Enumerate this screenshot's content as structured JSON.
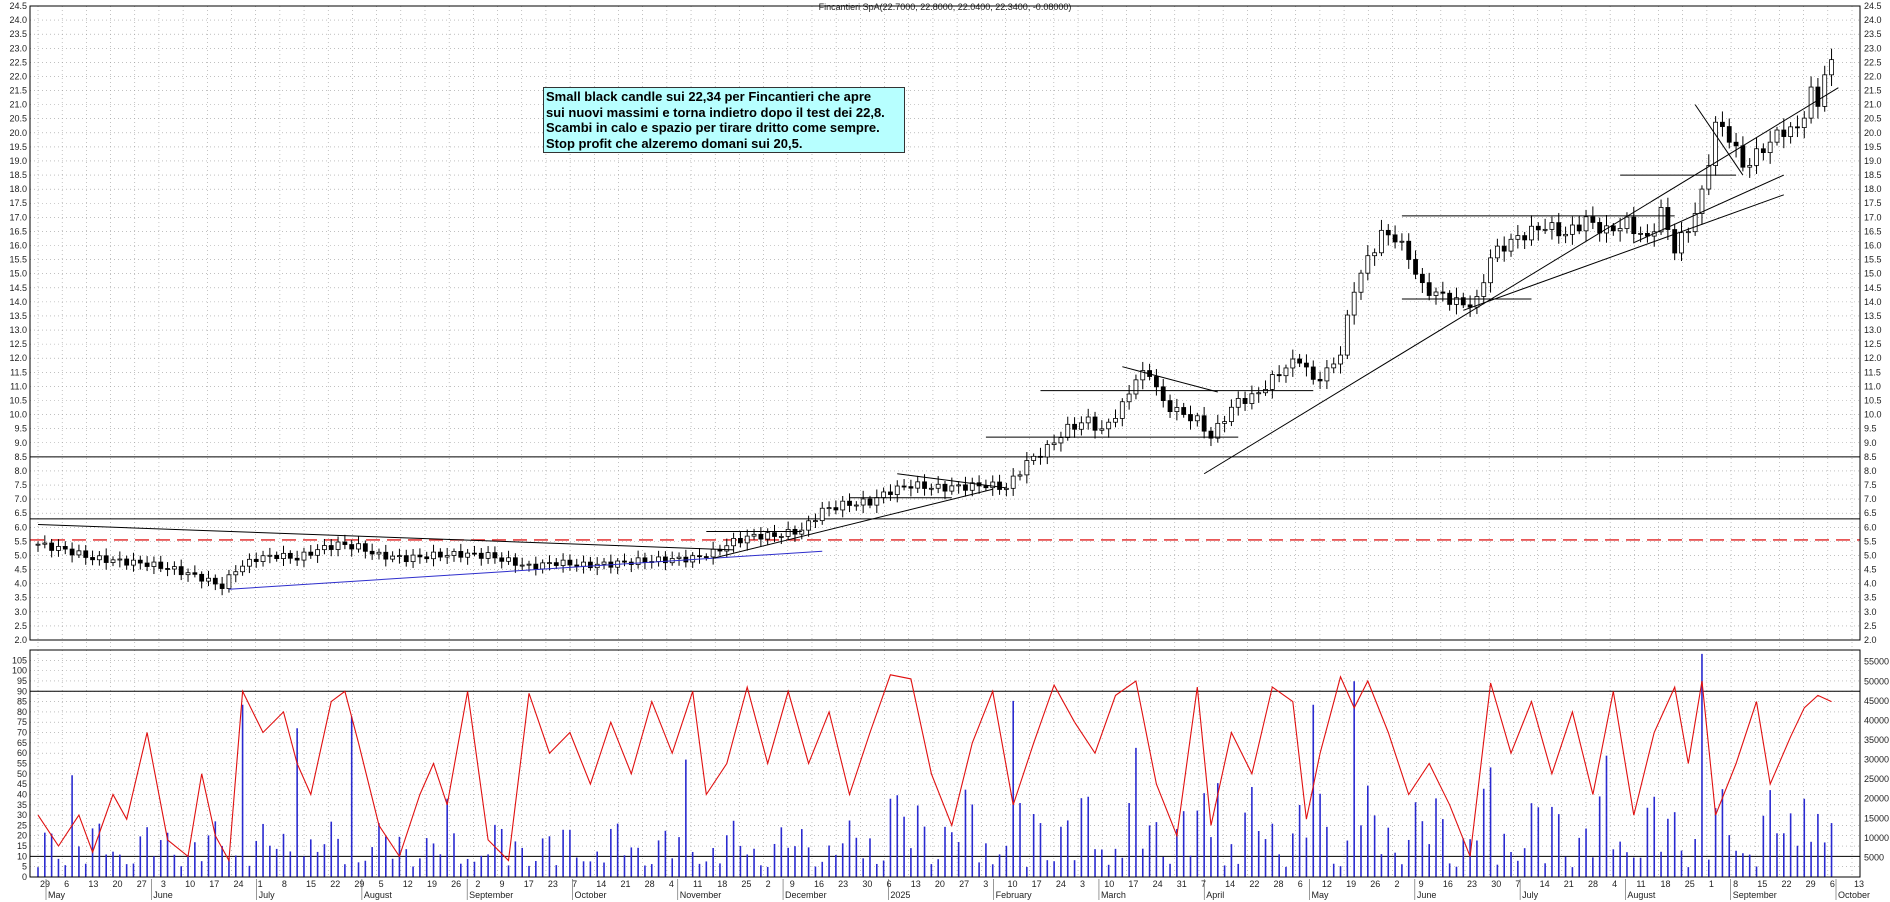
{
  "chart_data": {
    "type": "candlestick",
    "title": "Fincantieri SpA(22.7000, 22.8000, 22.0400, 22.3400, -0.08000)",
    "annotation": [
      "Small black candle sui 22,34 per Fincantieri che apre",
      "sui nuovi massimi e torna indietro dopo il test dei 22,8.",
      "Scambi in calo e spazio per tirare dritto come sempre.",
      "Stop profit  che alzeremo domani sui 20,5."
    ],
    "price_panel": {
      "ylim": [
        2.0,
        24.5
      ],
      "yticks": [
        "2.0",
        "2.5",
        "3.0",
        "3.5",
        "4.0",
        "4.5",
        "5.0",
        "5.5",
        "6.0",
        "6.5",
        "7.0",
        "7.5",
        "8.0",
        "8.5",
        "9.0",
        "9.5",
        "10.0",
        "10.5",
        "11.0",
        "11.5",
        "12.0",
        "12.5",
        "13.0",
        "13.5",
        "14.0",
        "14.5",
        "15.0",
        "15.5",
        "16.0",
        "16.5",
        "17.0",
        "17.5",
        "18.0",
        "18.5",
        "19.0",
        "19.5",
        "20.0",
        "20.5",
        "21.0",
        "21.5",
        "22.0",
        "22.5",
        "23.0",
        "23.5",
        "24.0",
        "24.5"
      ],
      "horizontal_levels": [
        8.5,
        6.3
      ],
      "dashed_level": 5.55,
      "close_path": [
        [
          0,
          5.4
        ],
        [
          4,
          5.2
        ],
        [
          8,
          4.9
        ],
        [
          12,
          4.8
        ],
        [
          16,
          4.7
        ],
        [
          20,
          4.5
        ],
        [
          24,
          4.2
        ],
        [
          27,
          3.9
        ],
        [
          29,
          4.5
        ],
        [
          32,
          4.9
        ],
        [
          35,
          5.0
        ],
        [
          38,
          4.9
        ],
        [
          41,
          5.2
        ],
        [
          44,
          5.4
        ],
        [
          47,
          5.3
        ],
        [
          50,
          5.0
        ],
        [
          54,
          4.9
        ],
        [
          58,
          5.0
        ],
        [
          62,
          5.05
        ],
        [
          66,
          5.0
        ],
        [
          69,
          4.8
        ],
        [
          72,
          4.6
        ],
        [
          76,
          4.75
        ],
        [
          80,
          4.65
        ],
        [
          84,
          4.7
        ],
        [
          88,
          4.8
        ],
        [
          92,
          4.85
        ],
        [
          96,
          4.9
        ],
        [
          99,
          5.1
        ],
        [
          102,
          5.5
        ],
        [
          105,
          5.7
        ],
        [
          108,
          5.7
        ],
        [
          112,
          5.9
        ],
        [
          115,
          6.6
        ],
        [
          118,
          6.8
        ],
        [
          122,
          6.9
        ],
        [
          125,
          7.3
        ],
        [
          128,
          7.5
        ],
        [
          132,
          7.4
        ],
        [
          136,
          7.45
        ],
        [
          139,
          7.5
        ],
        [
          142,
          7.4
        ],
        [
          145,
          8.3
        ],
        [
          148,
          8.8
        ],
        [
          151,
          9.5
        ],
        [
          154,
          9.8
        ],
        [
          156,
          9.4
        ],
        [
          159,
          10.3
        ],
        [
          161,
          11.3
        ],
        [
          163,
          11.5
        ],
        [
          165,
          10.4
        ],
        [
          168,
          10.0
        ],
        [
          170,
          9.8
        ],
        [
          172,
          9.2
        ],
        [
          174,
          9.9
        ],
        [
          176,
          10.5
        ],
        [
          178,
          10.6
        ],
        [
          180,
          11.0
        ],
        [
          182,
          11.5
        ],
        [
          185,
          12.0
        ],
        [
          187,
          11.2
        ],
        [
          189,
          11.5
        ],
        [
          191,
          12.2
        ],
        [
          193,
          14.5
        ],
        [
          195,
          15.5
        ],
        [
          197,
          16.4
        ],
        [
          199,
          16.3
        ],
        [
          201,
          15.6
        ],
        [
          203,
          14.5
        ],
        [
          206,
          14.2
        ],
        [
          209,
          13.9
        ],
        [
          211,
          14.0
        ],
        [
          213,
          15.6
        ],
        [
          215,
          16.0
        ],
        [
          218,
          16.4
        ],
        [
          221,
          16.7
        ],
        [
          224,
          16.4
        ],
        [
          227,
          16.9
        ],
        [
          230,
          16.5
        ],
        [
          233,
          16.8
        ],
        [
          236,
          16.2
        ],
        [
          238,
          17.2
        ],
        [
          240,
          15.9
        ],
        [
          242,
          16.6
        ],
        [
          244,
          17.8
        ],
        [
          246,
          20.3
        ],
        [
          248,
          19.9
        ],
        [
          250,
          18.8
        ],
        [
          252,
          19.2
        ],
        [
          254,
          19.7
        ],
        [
          256,
          20.1
        ],
        [
          258,
          20.1
        ],
        [
          260,
          21.4
        ],
        [
          261,
          21.0
        ],
        [
          262,
          22.2
        ],
        [
          263,
          22.34
        ]
      ],
      "trendlines": [
        {
          "from": [
            0,
            6.1
          ],
          "to": [
            102,
            5.2
          ],
          "color": "#000000"
        },
        {
          "from": [
            28,
            3.8
          ],
          "to": [
            115,
            5.15
          ],
          "color": "#2e2ecc"
        },
        {
          "from": [
            99,
            4.9
          ],
          "to": [
            140,
            7.35
          ],
          "color": "#000000"
        },
        {
          "from": [
            171,
            7.9
          ],
          "to": [
            264,
            21.6
          ],
          "color": "#000000"
        },
        {
          "from": [
            209,
            13.7
          ],
          "to": [
            256,
            17.8
          ],
          "color": "#000000"
        },
        {
          "from": [
            234,
            16.1
          ],
          "to": [
            256,
            18.5
          ],
          "color": "#000000"
        },
        {
          "from": [
            159,
            11.7
          ],
          "to": [
            173,
            10.8
          ],
          "color": "#000000"
        },
        {
          "from": [
            126,
            7.9
          ],
          "to": [
            142,
            7.4
          ],
          "color": "#000000"
        },
        {
          "from": [
            243,
            21.0
          ],
          "to": [
            250,
            18.5
          ],
          "color": "#000000"
        }
      ],
      "support_resistance": [
        {
          "from": [
            98,
            5.85
          ],
          "to": [
            112,
            5.85
          ]
        },
        {
          "from": [
            119,
            7.05
          ],
          "to": [
            134,
            7.05
          ]
        },
        {
          "from": [
            139,
            9.2
          ],
          "to": [
            176,
            9.2
          ]
        },
        {
          "from": [
            147,
            10.85
          ],
          "to": [
            187,
            10.85
          ]
        },
        {
          "from": [
            200,
            14.1
          ],
          "to": [
            219,
            14.1
          ]
        },
        {
          "from": [
            200,
            17.05
          ],
          "to": [
            240,
            17.05
          ]
        },
        {
          "from": [
            232,
            18.5
          ],
          "to": [
            249,
            18.5
          ]
        }
      ]
    },
    "indicator_panel": {
      "left_ylim": [
        0,
        110
      ],
      "left_yticks": [
        "0",
        "5",
        "10",
        "15",
        "20",
        "25",
        "30",
        "35",
        "40",
        "45",
        "50",
        "55",
        "60",
        "65",
        "70",
        "75",
        "80",
        "85",
        "90",
        "95",
        "100",
        "105"
      ],
      "right_ylim": [
        0,
        58000
      ],
      "right_yticks": [
        "5000",
        "10000",
        "15000",
        "20000",
        "25000",
        "30000",
        "35000",
        "40000",
        "45000",
        "50000",
        "55000"
      ],
      "reference_levels": [
        90,
        10
      ],
      "oscillator_path": [
        [
          0,
          30
        ],
        [
          3,
          15
        ],
        [
          6,
          30
        ],
        [
          8,
          12
        ],
        [
          11,
          40
        ],
        [
          13,
          28
        ],
        [
          16,
          70
        ],
        [
          19,
          18
        ],
        [
          22,
          10
        ],
        [
          24,
          50
        ],
        [
          26,
          20
        ],
        [
          28,
          8
        ],
        [
          30,
          90
        ],
        [
          33,
          70
        ],
        [
          36,
          80
        ],
        [
          38,
          55
        ],
        [
          40,
          40
        ],
        [
          43,
          85
        ],
        [
          45,
          90
        ],
        [
          47,
          65
        ],
        [
          50,
          25
        ],
        [
          53,
          10
        ],
        [
          56,
          40
        ],
        [
          58,
          55
        ],
        [
          60,
          35
        ],
        [
          63,
          90
        ],
        [
          66,
          18
        ],
        [
          69,
          8
        ],
        [
          72,
          89
        ],
        [
          75,
          60
        ],
        [
          78,
          70
        ],
        [
          81,
          45
        ],
        [
          84,
          75
        ],
        [
          87,
          50
        ],
        [
          90,
          85
        ],
        [
          93,
          60
        ],
        [
          96,
          90
        ],
        [
          98,
          40
        ],
        [
          101,
          55
        ],
        [
          104,
          92
        ],
        [
          107,
          55
        ],
        [
          110,
          90
        ],
        [
          113,
          55
        ],
        [
          116,
          80
        ],
        [
          119,
          40
        ],
        [
          122,
          70
        ],
        [
          125,
          98
        ],
        [
          128,
          96
        ],
        [
          131,
          50
        ],
        [
          134,
          25
        ],
        [
          137,
          65
        ],
        [
          140,
          90
        ],
        [
          143,
          35
        ],
        [
          146,
          65
        ],
        [
          149,
          93
        ],
        [
          152,
          75
        ],
        [
          155,
          60
        ],
        [
          158,
          88
        ],
        [
          161,
          95
        ],
        [
          164,
          45
        ],
        [
          167,
          20
        ],
        [
          170,
          92
        ],
        [
          172,
          25
        ],
        [
          175,
          70
        ],
        [
          178,
          50
        ],
        [
          181,
          92
        ],
        [
          184,
          85
        ],
        [
          186,
          28
        ],
        [
          188,
          60
        ],
        [
          191,
          97
        ],
        [
          193,
          82
        ],
        [
          195,
          95
        ],
        [
          198,
          70
        ],
        [
          201,
          40
        ],
        [
          204,
          55
        ],
        [
          207,
          35
        ],
        [
          210,
          10
        ],
        [
          213,
          94
        ],
        [
          216,
          60
        ],
        [
          219,
          85
        ],
        [
          222,
          50
        ],
        [
          225,
          80
        ],
        [
          228,
          40
        ],
        [
          231,
          90
        ],
        [
          234,
          30
        ],
        [
          237,
          70
        ],
        [
          240,
          92
        ],
        [
          242,
          55
        ],
        [
          244,
          95
        ],
        [
          246,
          30
        ],
        [
          249,
          55
        ],
        [
          252,
          85
        ],
        [
          254,
          45
        ],
        [
          257,
          68
        ],
        [
          259,
          82
        ],
        [
          261,
          88
        ],
        [
          263,
          85
        ]
      ],
      "volume_bars": [
        {
          "x": 5,
          "v": 26000
        },
        {
          "x": 30,
          "v": 44000
        },
        {
          "x": 38,
          "v": 38000
        },
        {
          "x": 46,
          "v": 41000
        },
        {
          "x": 60,
          "v": 20000
        },
        {
          "x": 95,
          "v": 30000
        },
        {
          "x": 125,
          "v": 20000
        },
        {
          "x": 143,
          "v": 45000
        },
        {
          "x": 161,
          "v": 33000
        },
        {
          "x": 173,
          "v": 24000
        },
        {
          "x": 187,
          "v": 44000
        },
        {
          "x": 193,
          "v": 50000
        },
        {
          "x": 213,
          "v": 28000
        },
        {
          "x": 230,
          "v": 31000
        },
        {
          "x": 244,
          "v": 57000
        },
        {
          "x": 259,
          "v": 20000
        }
      ]
    },
    "x_axis": {
      "day_labels": [
        "29",
        "6",
        "13",
        "20",
        "27",
        "3",
        "10",
        "17",
        "24",
        "1",
        "8",
        "15",
        "22",
        "29",
        "5",
        "12",
        "19",
        "26",
        "2",
        "9",
        "17",
        "23",
        "7",
        "14",
        "21",
        "28",
        "4",
        "11",
        "18",
        "25",
        "2",
        "9",
        "16",
        "23",
        "30",
        "6",
        "13",
        "20",
        "27",
        "3",
        "10",
        "17",
        "24",
        "3",
        "10",
        "17",
        "24",
        "31",
        "7",
        "14",
        "22",
        "28",
        "6",
        "12",
        "19",
        "26",
        "2",
        "9",
        "16",
        "23",
        "30",
        "7",
        "14",
        "21",
        "28",
        "4",
        "11",
        "18",
        "25",
        "1",
        "8",
        "15",
        "22",
        "29",
        "6",
        "13"
      ],
      "month_labels": [
        "May",
        "June",
        "July",
        "August",
        "September",
        "October",
        "November",
        "December",
        "2025",
        "February",
        "March",
        "April",
        "May",
        "June",
        "July",
        "August",
        "September",
        "October"
      ]
    }
  }
}
